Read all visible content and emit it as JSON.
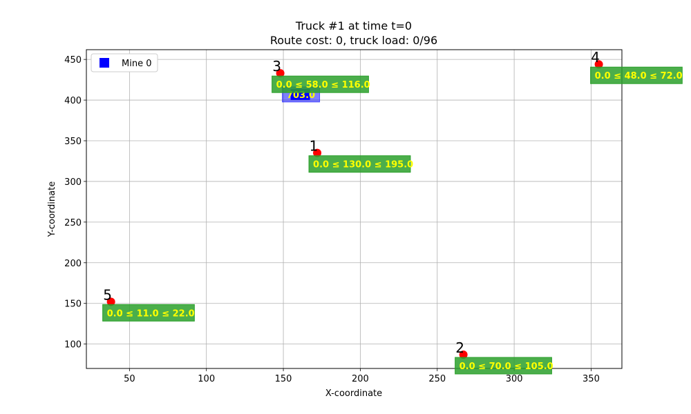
{
  "chart_data": {
    "type": "scatter",
    "title": "Truck #1 at time t=0",
    "subtitle": "Route cost: 0, truck load: 0/96",
    "xlabel": "X-coordinate",
    "ylabel": "Y-coordinate",
    "xlim": [
      22,
      370
    ],
    "ylim": [
      70,
      462
    ],
    "xticks": [
      50,
      100,
      150,
      200,
      250,
      300,
      350
    ],
    "yticks": [
      100,
      150,
      200,
      250,
      300,
      350,
      400,
      450
    ],
    "grid": true,
    "legend": {
      "placement": "upper-left",
      "entries": [
        {
          "label": "Mine 0",
          "color": "#0000ff",
          "marker": "square"
        }
      ]
    },
    "mine": {
      "x": 161,
      "y": 407,
      "label": "703.0",
      "color": "#0000ff"
    },
    "points": [
      {
        "id": "1",
        "x": 172,
        "y": 335,
        "box": "0.0 ≤ 130.0 ≤ 195.0"
      },
      {
        "id": "2",
        "x": 267,
        "y": 87,
        "box": "0.0 ≤ 70.0 ≤ 105.0"
      },
      {
        "id": "3",
        "x": 148,
        "y": 433,
        "box": "0.0 ≤ 58.0 ≤ 116.0"
      },
      {
        "id": "4",
        "x": 355,
        "y": 444,
        "box": "0.0 ≤ 48.0 ≤ 72.0"
      },
      {
        "id": "5",
        "x": 38,
        "y": 152,
        "box": "0.0 ≤ 11.0 ≤ 22.0"
      }
    ],
    "colors": {
      "point": "#ff0000",
      "box": "#2ca02c",
      "box_text": "#ffff00",
      "mine_box": "#0000ff"
    }
  }
}
